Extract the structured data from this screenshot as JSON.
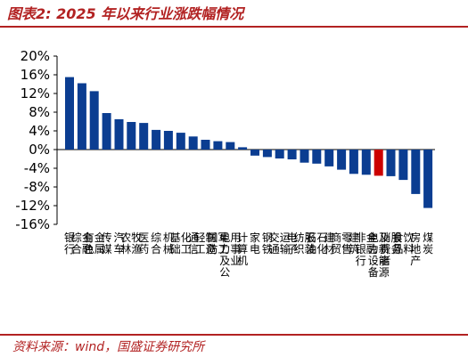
{
  "header": {
    "title": "图表2:  2025 年以来行业涨跌幅情况"
  },
  "footer": {
    "source": "资料来源：wind，国盛证券研究所"
  },
  "colors": {
    "bar": "#0b3d91",
    "highlight": "#cc0000",
    "accent": "#b22222",
    "grid_line": "#000000"
  },
  "chart_data": {
    "type": "bar",
    "title": "",
    "xlabel": "",
    "ylabel": "",
    "ylim": [
      -16,
      20
    ],
    "yticks": [
      -16,
      -12,
      -8,
      -4,
      0,
      4,
      8,
      12,
      16,
      20
    ],
    "ytick_labels": [
      "-16%",
      "-12%",
      "-8%",
      "-4%",
      "0%",
      "4%",
      "8%",
      "12%",
      "16%",
      "20%"
    ],
    "grid": false,
    "legend": "none",
    "highlight_category": "电力设备及新能源",
    "categories": [
      "银行",
      "综合金融",
      "有色金属",
      "传媒",
      "汽车",
      "农林牧渔",
      "医药",
      "综合",
      "机械",
      "基础化工",
      "通信",
      "轻工制造",
      "国防军工",
      "电力及公用事业",
      "计算机",
      "家电",
      "钢铁",
      "交通运输",
      "电子",
      "纺织服装",
      "石油石化",
      "建材",
      "商贸零售",
      "建筑",
      "非银行金融",
      "电力设备及新能源",
      "消费者服务",
      "食品饮料",
      "房地产",
      "煤炭"
    ],
    "values": [
      15.5,
      14.2,
      12.5,
      7.8,
      6.5,
      5.9,
      5.7,
      4.2,
      4.0,
      3.6,
      2.8,
      2.1,
      1.8,
      1.6,
      0.5,
      -1.3,
      -1.6,
      -1.9,
      -2.1,
      -2.8,
      -3.0,
      -3.6,
      -4.3,
      -5.2,
      -5.4,
      -5.6,
      -5.7,
      -6.5,
      -9.5,
      -12.5
    ]
  }
}
